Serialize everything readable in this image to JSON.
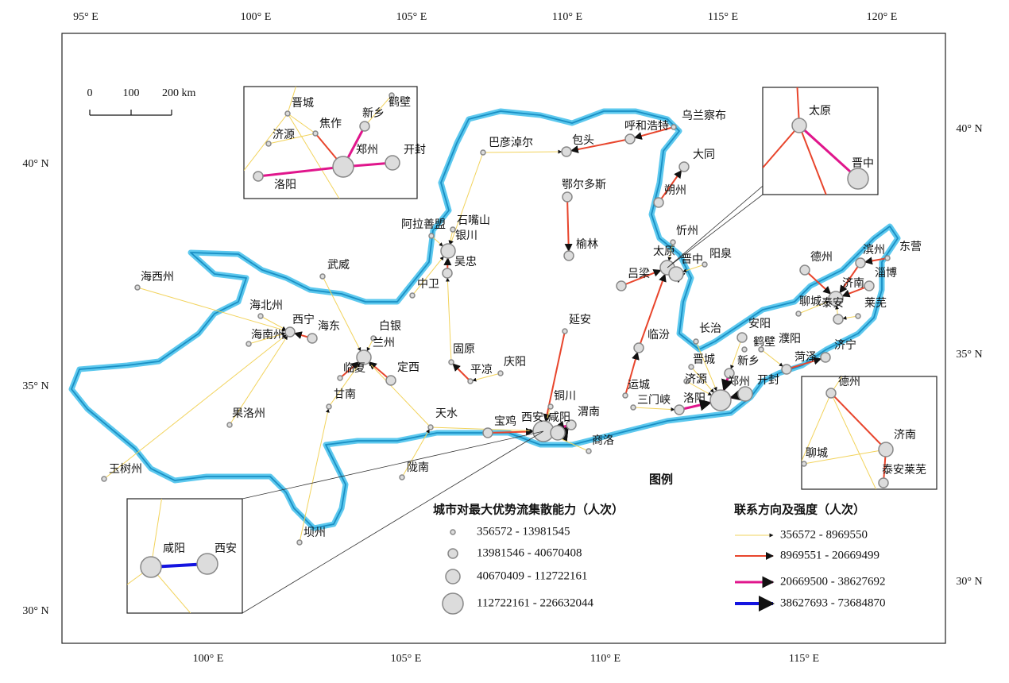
{
  "axes": {
    "top": [
      "95° E",
      "100° E",
      "105° E",
      "110° E",
      "115° E",
      "120° E"
    ],
    "bottom": [
      "100° E",
      "105° E",
      "110° E",
      "115° E"
    ],
    "left": [
      "40° N",
      "35° N",
      "30° N"
    ],
    "right": [
      "40° N",
      "35° N",
      "30° N"
    ]
  },
  "scale_bar": {
    "labels": [
      "0",
      "100",
      "200 km"
    ]
  },
  "cities": [
    "巴彦淖尔",
    "包头",
    "呼和浩特",
    "乌兰察布",
    "大同",
    "朔州",
    "鄂尔多斯",
    "榆林",
    "忻州",
    "太原",
    "晋中",
    "阳泉",
    "吕梁",
    "临汾",
    "长治",
    "晋城",
    "运城",
    "三门峡",
    "洛阳",
    "济源",
    "郑州",
    "开封",
    "新乡",
    "安阳",
    "鹤壁",
    "濮阳",
    "菏泽",
    "济宁",
    "德州",
    "滨州",
    "东营",
    "淄博",
    "济南",
    "泰安",
    "莱芜",
    "聊城",
    "石嘴山",
    "阿拉善盟",
    "银川",
    "吴忠",
    "中卫",
    "武威",
    "海西州",
    "海北州",
    "西宁",
    "海东",
    "海南州",
    "白银",
    "兰州",
    "临夏",
    "定西",
    "甘南",
    "果洛州",
    "玉树州",
    "固原",
    "平凉",
    "庆阳",
    "天水",
    "陇南",
    "坝州",
    "延安",
    "铜川",
    "宝鸡",
    "西安",
    "咸阳",
    "渭南",
    "商洛"
  ],
  "insets": [
    {
      "labels": [
        "晋城",
        "济源",
        "焦作",
        "新乡",
        "鹤壁",
        "洛阳",
        "郑州",
        "开封"
      ]
    },
    {
      "labels": [
        "太原",
        "晋中"
      ]
    },
    {
      "labels": [
        "德州",
        "济南",
        "聊城",
        "泰安莱芜"
      ]
    },
    {
      "labels": [
        "咸阳",
        "西安"
      ]
    }
  ],
  "legend": {
    "title": "图例",
    "node_title": "城市对最大优势流集散能力（人次）",
    "node_classes": [
      "356572 - 13981545",
      "13981546 - 40670408",
      "40670409 - 112722161",
      "112722161 - 226632044"
    ],
    "link_title": "联系方向及强度（人次）",
    "link_classes": [
      "356572 - 8969550",
      "8969551 - 20669499",
      "20669500 - 38627692",
      "38627693 - 73684870"
    ]
  }
}
